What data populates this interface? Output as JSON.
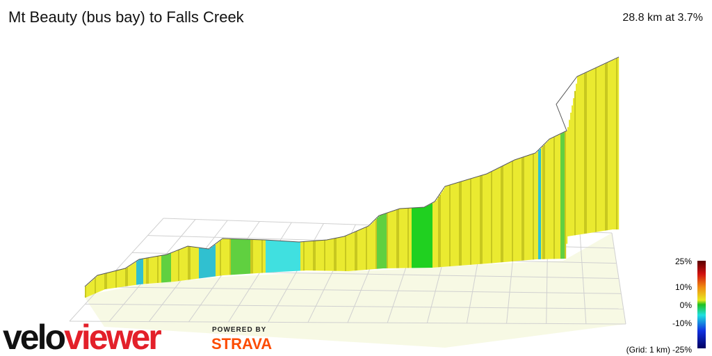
{
  "header": {
    "title": "Mt Beauty (bus bay) to Falls Creek",
    "stats": "28.8 km at 3.7%"
  },
  "legend": {
    "labels": [
      "25%",
      "10%",
      "0%",
      "-10%",
      "-25%"
    ],
    "grid_note": "(Grid: 1 km)"
  },
  "branding": {
    "logo_left": "velo",
    "logo_right": "viewer",
    "powered_by": "POWERED BY",
    "partner": "STRAVA"
  }
}
